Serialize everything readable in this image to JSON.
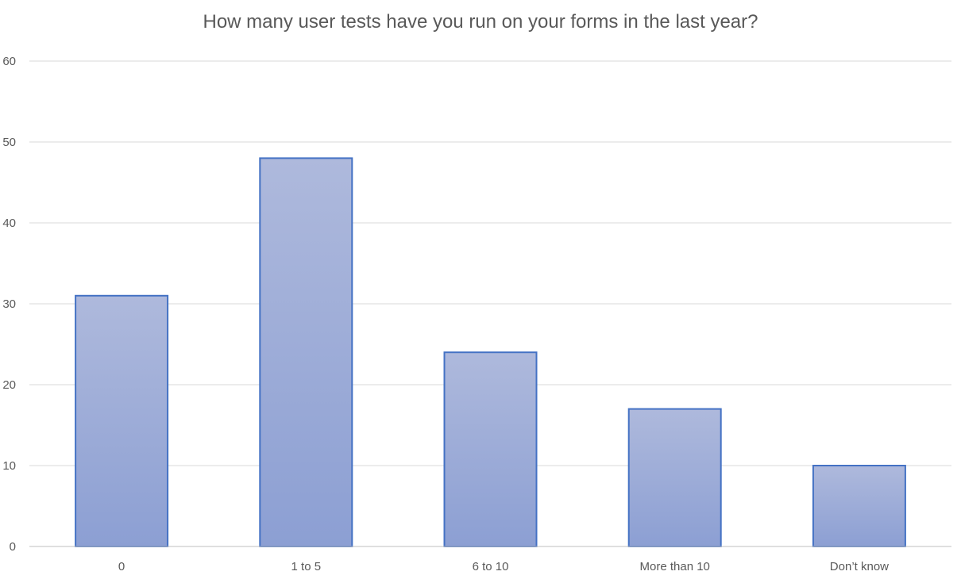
{
  "chart_data": {
    "type": "bar",
    "title": "How many user tests have you run on your forms in the last year?",
    "categories": [
      "0",
      "1 to 5",
      "6 to 10",
      "More than 10",
      "Don’t know"
    ],
    "values": [
      31,
      48,
      24,
      17,
      10
    ],
    "xlabel": "",
    "ylabel": "",
    "ylim": [
      0,
      60
    ],
    "yticks": [
      0,
      10,
      20,
      30,
      40,
      50,
      60
    ],
    "grid": true,
    "legend": "none",
    "colors": {
      "bar_top": "#aeb9dc",
      "bar_bottom": "#8c9fd3",
      "bar_border": "#4472c4",
      "grid": "#d9d9d9",
      "axis": "#bfbfbf",
      "text": "#595959"
    }
  }
}
